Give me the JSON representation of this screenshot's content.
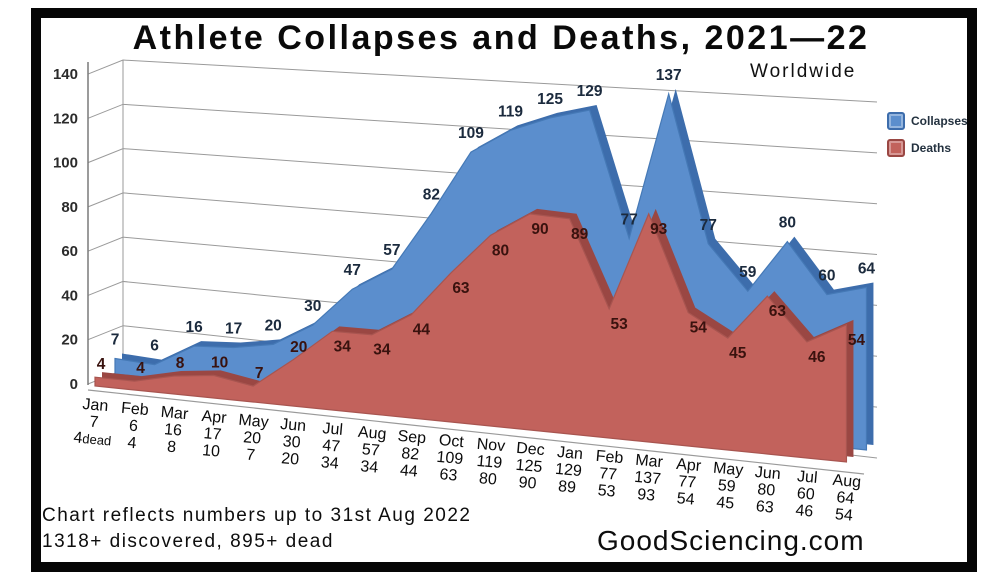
{
  "header": {
    "title": "Athlete Collapses and Deaths, 2021—22",
    "subtitle": "Worldwide"
  },
  "chart_data": {
    "type": "area",
    "title": "Athlete Collapses and Deaths, 2021—22",
    "subtitle": "Worldwide",
    "categories": [
      "Jan 2021",
      "Feb 2021",
      "Mar 2021",
      "Apr 2021",
      "May 2021",
      "Jun 2021",
      "Jul 2021",
      "Aug 2021",
      "Sep 2021",
      "Oct 2021",
      "Nov 2021",
      "Dec 2021",
      "Jan 2022",
      "Feb 2022",
      "Mar 2022",
      "Apr 2022",
      "May 2022",
      "Jun 2022",
      "Jul 2022",
      "Aug 2022"
    ],
    "tick_months": [
      "Jan",
      "Feb",
      "Mar",
      "Apr",
      "May",
      "Jun",
      "Jul",
      "Aug",
      "Sep",
      "Oct",
      "Nov",
      "Dec",
      "Jan",
      "Feb",
      "Mar",
      "Apr",
      "May",
      "Jun",
      "Jul",
      "Aug"
    ],
    "series": [
      {
        "name": "Collapses",
        "color": "#5b8ecd",
        "edge": "#3d6dac",
        "values": [
          7,
          6,
          16,
          17,
          20,
          30,
          47,
          57,
          82,
          109,
          119,
          125,
          129,
          77,
          137,
          77,
          59,
          80,
          60,
          64
        ]
      },
      {
        "name": "Deaths",
        "color": "#c2625c",
        "edge": "#9a4743",
        "values": [
          4,
          4,
          8,
          10,
          7,
          20,
          34,
          34,
          44,
          63,
          80,
          90,
          89,
          53,
          93,
          54,
          45,
          63,
          46,
          54
        ]
      }
    ],
    "ylim": [
      0,
      140
    ],
    "yticks": [
      0,
      20,
      40,
      60,
      80,
      100,
      120,
      140
    ],
    "grid": true,
    "legend_position": "top-right",
    "first_tick_note": "dead",
    "label_colors": {
      "collapses": "#1b2a3d",
      "deaths": "#39120e"
    },
    "gridline_color": "#9a9a9a"
  },
  "footer": {
    "note_line1": "Chart reflects numbers up to 31st Aug 2022",
    "note_line2": "1318+ discovered, 895+ dead",
    "brand": "GoodSciencing.com"
  }
}
